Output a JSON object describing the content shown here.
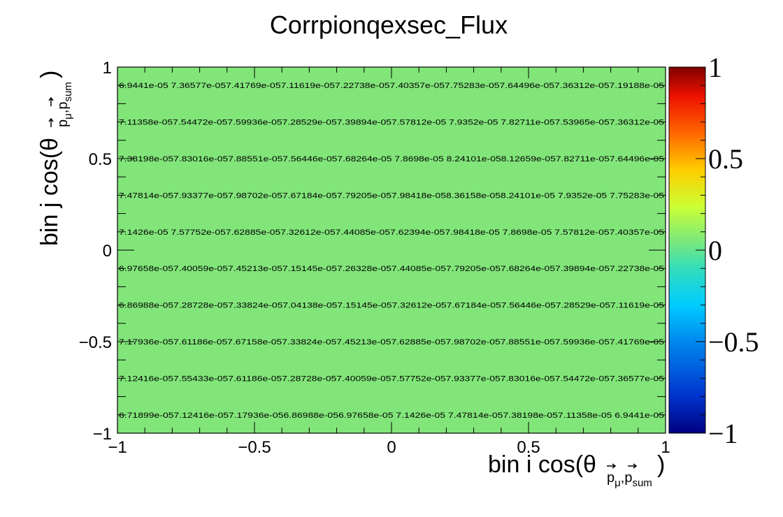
{
  "chart_data": {
    "type": "heatmap",
    "title": "Corrpionqexsec_Flux",
    "xlabel": {
      "main": "bin i cos(θ",
      "sub": "p_μ,p_sum",
      "sub_base": "p",
      "sub_mu": "μ",
      "sub_sep": ",",
      "sub_sum": "sum",
      "close": ")"
    },
    "ylabel": {
      "main": "bin j cos(θ",
      "sub_base": "p",
      "sub_mu": "μ",
      "sub_sep": ",",
      "sub_sum": "sum",
      "close": ")"
    },
    "xlim": [
      -1,
      1
    ],
    "ylim": [
      -1,
      1
    ],
    "x_ticks": [
      {
        "value": -1,
        "label": "−1"
      },
      {
        "value": -0.5,
        "label": "−0.5"
      },
      {
        "value": 0,
        "label": "0"
      },
      {
        "value": 0.5,
        "label": "0.5"
      },
      {
        "value": 1,
        "label": "1"
      }
    ],
    "y_ticks": [
      {
        "value": -1,
        "label": "−1"
      },
      {
        "value": -0.5,
        "label": "−0.5"
      },
      {
        "value": 0,
        "label": "0"
      },
      {
        "value": 0.5,
        "label": "0.5"
      },
      {
        "value": 1,
        "label": "1"
      }
    ],
    "colorbar": {
      "range": [
        -1,
        1
      ],
      "ticks": [
        {
          "value": 1,
          "label": "1"
        },
        {
          "value": 0.5,
          "label": "0.5"
        },
        {
          "value": 0,
          "label": "0"
        },
        {
          "value": -0.5,
          "label": "−0.5"
        },
        {
          "value": -1,
          "label": "−1"
        }
      ]
    },
    "cell_color": "#82e57a",
    "rows": [
      "6.9441e-05 7.36577e-057.41769e-057.11619e-057.22738e-057.40357e-057.75283e-057.64496e-057.36312e-057.19188e-05",
      "7.11358e-057.54472e-057.59936e-057.28529e-057.39894e-057.57812e-05 7.9352e-05  7.82711e-057.53965e-057.36312e-05",
      "7.38198e-057.83016e-057.88551e-057.56446e-057.68264e-05 7.8698e-05  8.24101e-058.12659e-057.82711e-057.64496e-05",
      "7.47814e-057.93377e-057.98702e-057.67184e-057.79205e-057.98418e-058.36158e-058.24101e-05 7.9352e-05  7.75283e-05",
      "7.1426e-05  7.57752e-057.62885e-057.32612e-057.44085e-057.62394e-057.98418e-05 7.8698e-05  7.57812e-057.40357e-05",
      "6.97658e-057.40059e-057.45213e-057.15145e-057.26328e-057.44085e-057.79205e-057.68264e-057.39894e-057.22738e-05",
      "6.86988e-057.28728e-057.33824e-057.04138e-057.15145e-057.32612e-057.67184e-057.56446e-057.28529e-057.11619e-05",
      "7.17936e-057.61186e-057.67158e-057.33824e-057.45213e-057.62885e-057.98702e-057.88551e-057.59936e-057.41769e-05",
      "7.12416e-057.55433e-057.61186e-057.28728e-057.40059e-057.57752e-057.93377e-057.83016e-057.54472e-057.36577e-05",
      "6.71899e-057.12416e-057.17936e-056.86988e-056.97658e-05 7.1426e-05  7.47814e-057.38198e-057.11358e-05 6.9441e-05"
    ]
  }
}
